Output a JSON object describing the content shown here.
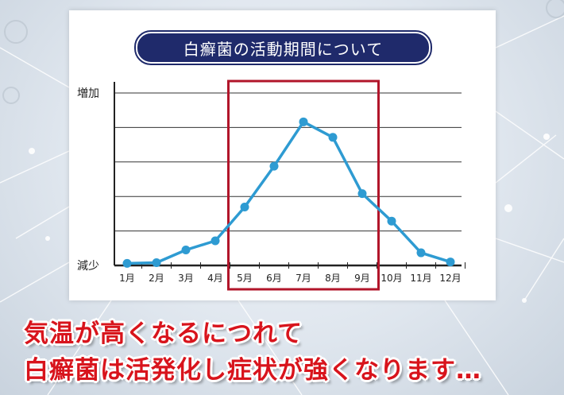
{
  "chart_data": {
    "type": "line",
    "title": "白癬菌の活動期間について",
    "categories": [
      "1月",
      "2月",
      "3月",
      "4月",
      "5月",
      "6月",
      "7月",
      "8月",
      "9月",
      "10月",
      "11月",
      "12月"
    ],
    "values": [
      0.3,
      0.4,
      2.2,
      3.5,
      8.3,
      14.1,
      20.4,
      18.2,
      10.2,
      6.3,
      1.8,
      0.5
    ],
    "ylim": [
      0,
      24.5
    ],
    "y_tick_labels": {
      "top": "増加",
      "bottom": "減少"
    },
    "highlight": {
      "from": "5月",
      "to": "9月",
      "color": "#b1152a"
    },
    "grid": true,
    "line_color": "#2e9bd2"
  },
  "caption": {
    "line1": "気温が高くなるにつれて",
    "line2": "白癬菌は活発化し症状が強くなります…"
  },
  "colors": {
    "title_bg": "#1f2a6b",
    "caption_text": "#d8141c"
  }
}
